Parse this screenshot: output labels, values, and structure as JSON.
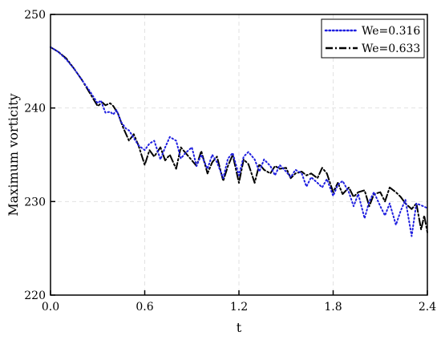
{
  "chart_data": {
    "type": "line",
    "xlabel": "t",
    "ylabel": "Maximum vorticity",
    "xlim": [
      0,
      2.4
    ],
    "ylim": [
      220,
      250
    ],
    "xticks": [
      0.0,
      0.6,
      1.2,
      1.8,
      2.4
    ],
    "xtick_labels": [
      "0.0",
      "0.6",
      "1.2",
      "1.8",
      "2.4"
    ],
    "yticks": [
      220,
      230,
      240,
      250
    ],
    "ytick_labels": [
      "220",
      "230",
      "240",
      "250"
    ],
    "grid": true,
    "legend_position": "top-right",
    "series": [
      {
        "name": "We=0.316",
        "color": "#1f1fe0",
        "style": "dotted",
        "x": [
          0.0,
          0.05,
          0.1,
          0.15,
          0.2,
          0.25,
          0.3,
          0.32,
          0.35,
          0.38,
          0.4,
          0.42,
          0.45,
          0.48,
          0.5,
          0.53,
          0.56,
          0.6,
          0.63,
          0.66,
          0.7,
          0.73,
          0.76,
          0.8,
          0.83,
          0.86,
          0.9,
          0.93,
          0.96,
          1.0,
          1.03,
          1.06,
          1.1,
          1.13,
          1.16,
          1.2,
          1.23,
          1.26,
          1.3,
          1.33,
          1.36,
          1.4,
          1.43,
          1.46,
          1.5,
          1.53,
          1.56,
          1.6,
          1.63,
          1.66,
          1.7,
          1.73,
          1.76,
          1.8,
          1.83,
          1.86,
          1.9,
          1.93,
          1.96,
          2.0,
          2.03,
          2.06,
          2.1,
          2.13,
          2.16,
          2.2,
          2.23,
          2.26,
          2.3,
          2.33,
          2.36,
          2.4
        ],
        "y": [
          246.5,
          246.0,
          245.2,
          244.2,
          243.0,
          241.8,
          240.5,
          240.8,
          239.5,
          239.6,
          239.3,
          239.8,
          238.5,
          237.8,
          237.6,
          236.8,
          236.0,
          235.5,
          236.2,
          236.5,
          234.5,
          235.8,
          236.9,
          236.5,
          234.6,
          235.2,
          235.8,
          233.8,
          235.0,
          233.5,
          235.0,
          234.2,
          232.5,
          234.6,
          235.2,
          232.8,
          234.8,
          235.3,
          234.5,
          233.2,
          234.5,
          233.8,
          232.8,
          233.9,
          233.2,
          232.6,
          233.4,
          233.0,
          231.6,
          232.6,
          232.0,
          231.5,
          232.4,
          230.6,
          231.8,
          232.2,
          231.0,
          229.5,
          230.8,
          228.2,
          230.0,
          231.0,
          229.5,
          228.5,
          229.8,
          227.5,
          229.0,
          230.2,
          226.3,
          229.8,
          229.6,
          229.3
        ]
      },
      {
        "name": "We=0.633",
        "color": "#000000",
        "style": "dashdot",
        "x": [
          0.0,
          0.05,
          0.1,
          0.15,
          0.2,
          0.25,
          0.3,
          0.33,
          0.35,
          0.38,
          0.4,
          0.43,
          0.46,
          0.5,
          0.53,
          0.56,
          0.6,
          0.63,
          0.66,
          0.7,
          0.73,
          0.76,
          0.8,
          0.83,
          0.86,
          0.9,
          0.93,
          0.96,
          1.0,
          1.03,
          1.06,
          1.1,
          1.13,
          1.16,
          1.2,
          1.23,
          1.26,
          1.3,
          1.33,
          1.36,
          1.4,
          1.43,
          1.46,
          1.5,
          1.53,
          1.56,
          1.6,
          1.63,
          1.66,
          1.7,
          1.73,
          1.76,
          1.8,
          1.83,
          1.86,
          1.9,
          1.93,
          1.96,
          2.0,
          2.03,
          2.06,
          2.1,
          2.13,
          2.16,
          2.2,
          2.23,
          2.26,
          2.3,
          2.33,
          2.36,
          2.38,
          2.4
        ],
        "y": [
          246.5,
          246.0,
          245.3,
          244.2,
          243.0,
          241.6,
          240.2,
          240.6,
          240.3,
          240.5,
          240.2,
          239.4,
          238.0,
          236.5,
          237.2,
          236.0,
          233.9,
          235.5,
          234.8,
          235.8,
          234.4,
          235.0,
          233.5,
          235.8,
          235.2,
          234.4,
          233.8,
          235.4,
          233.0,
          234.2,
          234.8,
          232.2,
          233.8,
          235.0,
          232.0,
          234.5,
          234.0,
          232.0,
          234.0,
          233.4,
          233.0,
          233.8,
          233.5,
          233.6,
          232.5,
          233.0,
          233.2,
          232.8,
          233.0,
          232.5,
          233.6,
          233.0,
          231.0,
          232.0,
          230.8,
          231.5,
          230.5,
          231.0,
          231.2,
          229.5,
          230.8,
          231.0,
          230.0,
          231.5,
          231.0,
          230.5,
          229.8,
          229.2,
          229.8,
          227.0,
          228.5,
          226.7
        ]
      }
    ]
  }
}
